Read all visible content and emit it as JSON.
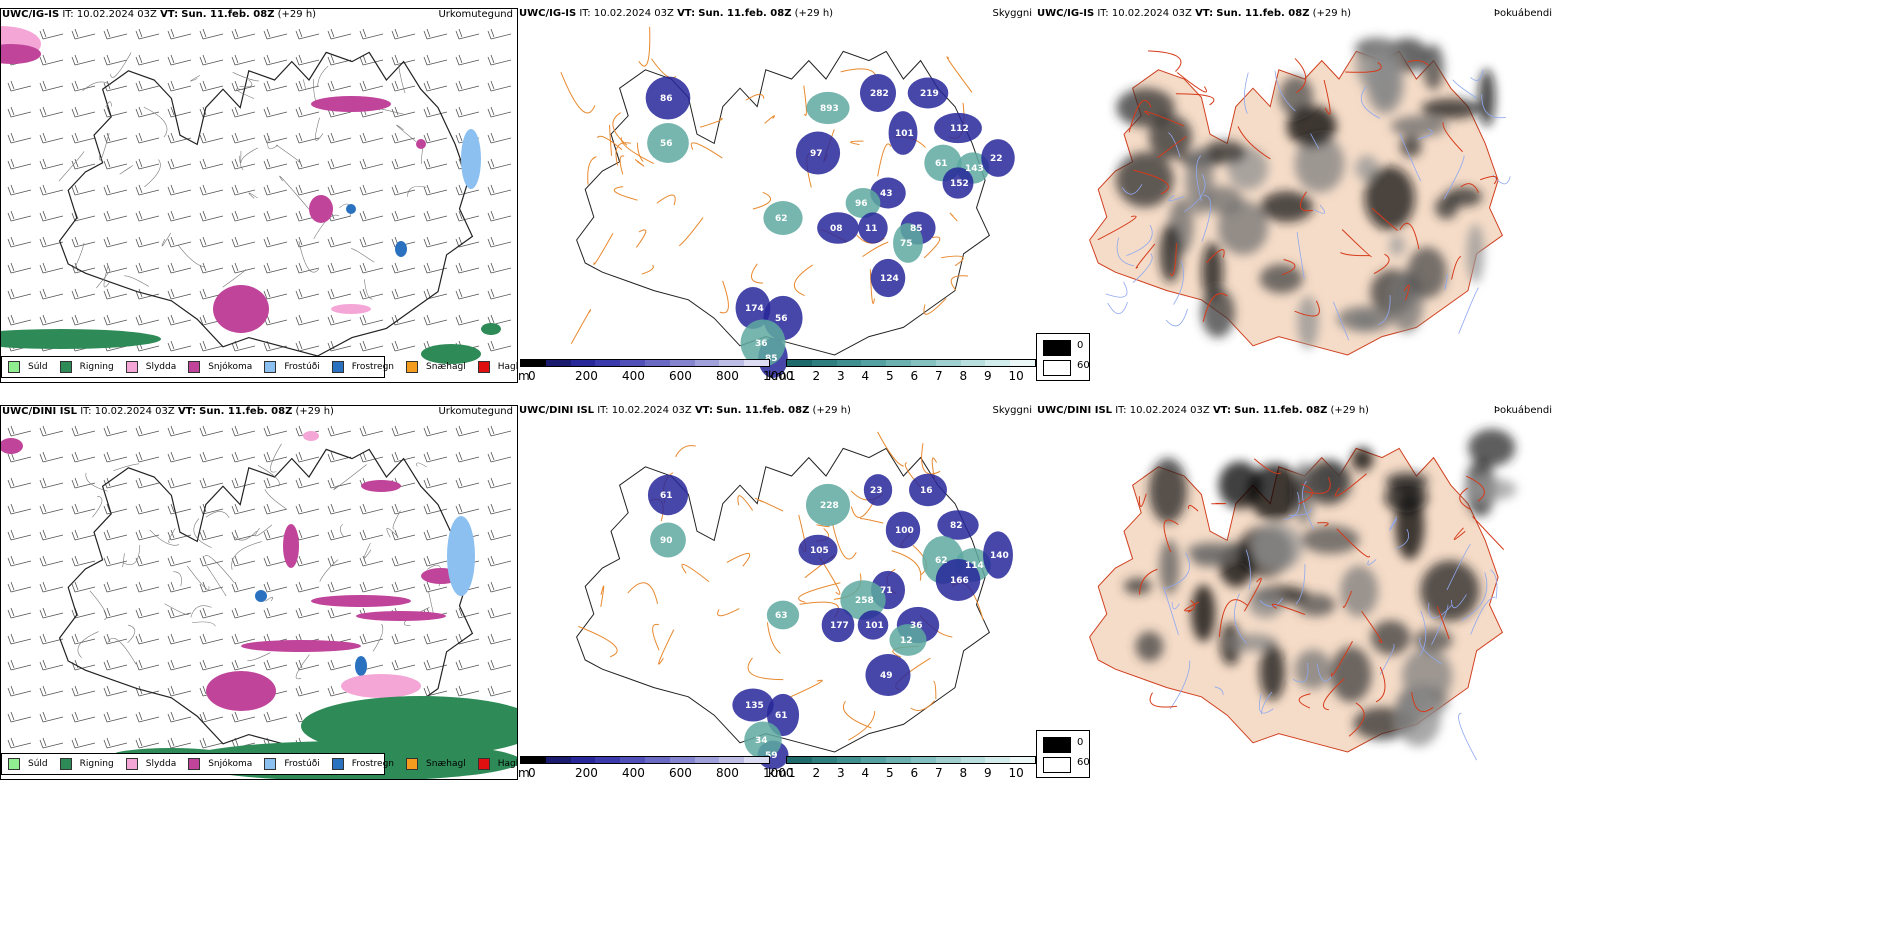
{
  "rows": [
    {
      "model": "UWC/IG-IS",
      "it_label": "IT:",
      "it_value": "10.02.2024 03Z",
      "vt_label": "VT:",
      "vt_value": "Sun. 11.feb. 08Z",
      "lead": "(+29 h)",
      "visibility_labels": [
        "893",
        "174",
        "56",
        "62",
        "97",
        "86",
        "56",
        "101",
        "112",
        "61",
        "43",
        "85",
        "143",
        "152",
        "22",
        "96",
        "08",
        "11",
        "75",
        "124",
        "85",
        "36",
        "282",
        "219"
      ]
    },
    {
      "model": "UWC/DINI ISL",
      "it_label": "IT:",
      "it_value": "10.02.2024 03Z",
      "vt_label": "VT:",
      "vt_value": "Sun. 11.feb. 08Z",
      "lead": "(+29 h)",
      "visibility_labels": [
        "228",
        "135",
        "61",
        "63",
        "105",
        "61",
        "90",
        "100",
        "82",
        "62",
        "71",
        "36",
        "114",
        "166",
        "140",
        "258",
        "177",
        "101",
        "12",
        "49",
        "59",
        "34",
        "23",
        "16"
      ]
    }
  ],
  "panel_titles": {
    "precip": "Úrkomutegund",
    "visibility": "Skyggni",
    "fog": "Þokuábendi"
  },
  "precip_legend": [
    {
      "label": "Súld",
      "color": "#90ee90"
    },
    {
      "label": "Rigning",
      "color": "#2e8b57"
    },
    {
      "label": "Slydda",
      "color": "#f4a6d7"
    },
    {
      "label": "Snjókoma",
      "color": "#c0449a"
    },
    {
      "label": "Frostúði",
      "color": "#8cc0f0"
    },
    {
      "label": "Frostregn",
      "color": "#2a72c0"
    },
    {
      "label": "Snæhagl",
      "color": "#f39c1e"
    },
    {
      "label": "Haglél",
      "color": "#e01010"
    }
  ],
  "visibility_scale": {
    "m_unit": "m",
    "m_ticks": [
      "0",
      "200",
      "400",
      "600",
      "800",
      "1000"
    ],
    "km_unit": "km",
    "km_ticks": [
      "1",
      "2",
      "3",
      "4",
      "5",
      "6",
      "7",
      "8",
      "9",
      "10"
    ],
    "m_colors": [
      "#000000",
      "#1a1a6e",
      "#27279a",
      "#3a3aad",
      "#5050b8",
      "#6a6ac4",
      "#8585cf",
      "#a0a0da",
      "#bdbde6",
      "#dcdcf2"
    ],
    "km_colors": [
      "#1f6b6b",
      "#2f7f7f",
      "#3f8f8f",
      "#55a0a0",
      "#6cb0b0",
      "#85c0c0",
      "#9fcfcf",
      "#b8dede",
      "#d2ecec",
      "#ecf7f7"
    ]
  },
  "fog_legend": [
    {
      "label": "0",
      "color": "#000000"
    },
    {
      "label": "60",
      "color": "#ffffff"
    }
  ]
}
